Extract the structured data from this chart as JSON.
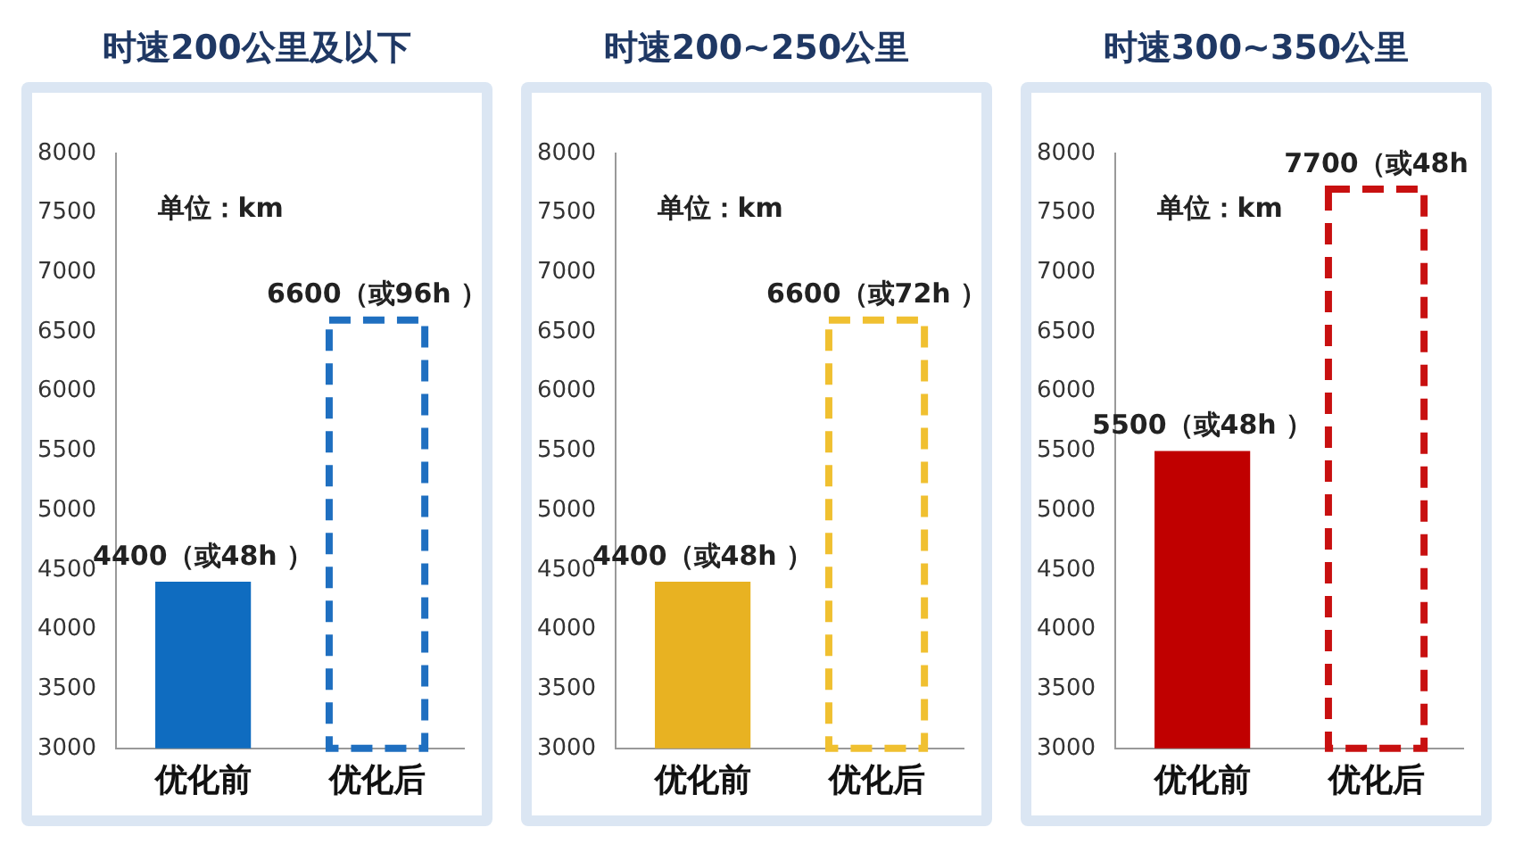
{
  "chart_data": [
    {
      "type": "bar",
      "title": "时速200公里及以下",
      "categories": [
        "优化前",
        "优化后"
      ],
      "ylim": [
        3000,
        8000
      ],
      "yticks": [
        3000,
        3500,
        4000,
        4500,
        5000,
        5500,
        6000,
        6500,
        7000,
        7500,
        8000
      ],
      "legend": false,
      "grid": false,
      "annotations": [
        "单位：km"
      ],
      "series": [
        {
          "color": "#0f6cc0",
          "values": [
            4400,
            null
          ],
          "value_labels": [
            "4400（或48h ）",
            null
          ],
          "line_style": "solid"
        },
        {
          "color": "#1f6fc0",
          "values": [
            null,
            6600
          ],
          "value_labels": [
            null,
            "6600（或96h ）"
          ],
          "line_style": "dashed"
        }
      ]
    },
    {
      "type": "bar",
      "title": "时速200~250公里",
      "categories": [
        "优化前",
        "优化后"
      ],
      "ylim": [
        3000,
        8000
      ],
      "yticks": [
        3000,
        3500,
        4000,
        4500,
        5000,
        5500,
        6000,
        6500,
        7000,
        7500,
        8000
      ],
      "legend": false,
      "grid": false,
      "annotations": [
        "单位：km"
      ],
      "series": [
        {
          "color": "#e8b222",
          "values": [
            4400,
            null
          ],
          "value_labels": [
            "4400（或48h ）",
            null
          ],
          "line_style": "solid"
        },
        {
          "color": "#f0c030",
          "values": [
            null,
            6600
          ],
          "value_labels": [
            null,
            "6600（或72h ）"
          ],
          "line_style": "dashed"
        }
      ]
    },
    {
      "type": "bar",
      "title": "时速300~350公里",
      "categories": [
        "优化前",
        "优化后"
      ],
      "ylim": [
        3000,
        8000
      ],
      "yticks": [
        3000,
        3500,
        4000,
        4500,
        5000,
        5500,
        6000,
        6500,
        7000,
        7500,
        8000
      ],
      "legend": false,
      "grid": false,
      "annotations": [
        "单位：km"
      ],
      "series": [
        {
          "color": "#c00000",
          "values": [
            5500,
            null
          ],
          "value_labels": [
            "5500（或48h ）",
            null
          ],
          "line_style": "solid"
        },
        {
          "color": "#c81010",
          "values": [
            null,
            7700
          ],
          "value_labels": [
            null,
            "7700（或48h"
          ],
          "line_style": "dashed"
        }
      ]
    }
  ]
}
